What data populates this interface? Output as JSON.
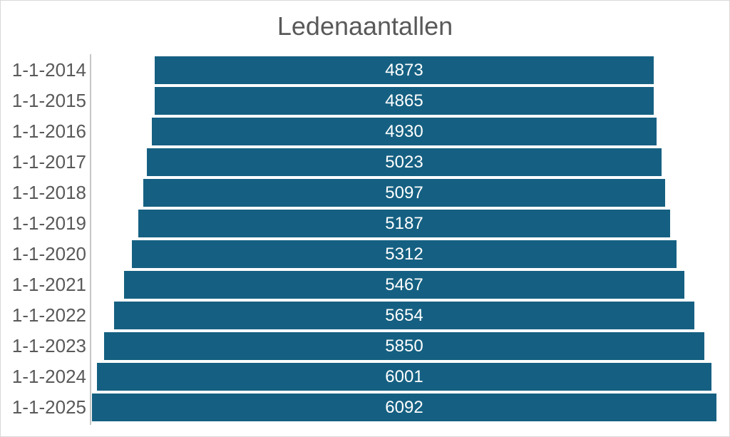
{
  "chart_data": {
    "type": "bar",
    "orientation": "horizontal-centered-funnel",
    "title": "Ledenaantallen",
    "categories": [
      "1-1-2014",
      "1-1-2015",
      "1-1-2016",
      "1-1-2017",
      "1-1-2018",
      "1-1-2019",
      "1-1-2020",
      "1-1-2021",
      "1-1-2022",
      "1-1-2023",
      "1-1-2024",
      "1-1-2025"
    ],
    "values": [
      4873,
      4865,
      4930,
      5023,
      5097,
      5187,
      5312,
      5467,
      5654,
      5850,
      6001,
      6092
    ],
    "value_labels": [
      "4873",
      "4865",
      "4930",
      "5023",
      "5097",
      "5187",
      "5312",
      "5467",
      "5654",
      "5850",
      "6001",
      "6092"
    ],
    "axis_max": 6092,
    "xlabel": "",
    "ylabel": "",
    "legend": "none",
    "grid": false,
    "colors": {
      "bar": "#156082",
      "title_text": "#595959",
      "category_label_text": "#595959",
      "value_label_text": "#ffffff",
      "axis_line": "#c6c6c6",
      "background": "#ffffff",
      "border": "#d9d9d9"
    }
  }
}
